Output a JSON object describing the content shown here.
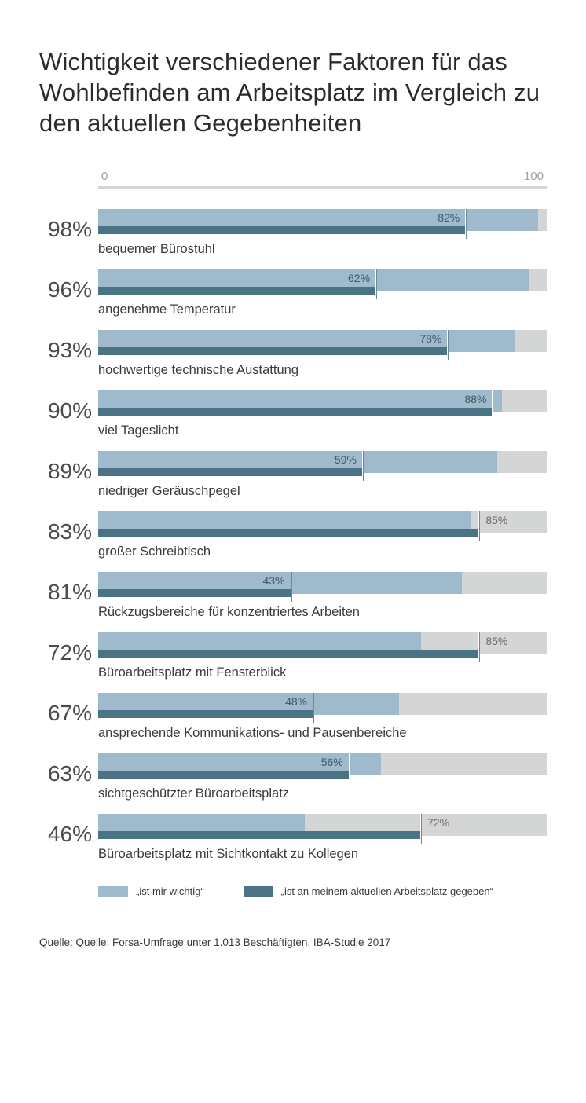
{
  "title": "Wichtigkeit verschiedener Faktoren für das Wohlbefinden am Arbeitsplatz im Vergleich zu den aktuellen Gegebenheiten",
  "axis": {
    "min_label": "0",
    "max_label": "100",
    "max": 100
  },
  "colors": {
    "track": "#d4d6d6",
    "importance": "#9ebacc",
    "actual": "#4a7485",
    "text": "#3a3a3a",
    "inner_label": "#3c5a68"
  },
  "legend": {
    "importance": "„ist mir wichtig“",
    "actual": "„ist an meinem aktuellen Arbeitsplatz gegeben“"
  },
  "source": "Quelle: Quelle: Forsa-Umfrage unter 1.013 Beschäftigten, IBA-Studie 2017",
  "rows": [
    {
      "label": "bequemer Bürostuhl",
      "importance": 98,
      "actual": 82,
      "inner": "82%"
    },
    {
      "label": "angenehme Temperatur",
      "importance": 96,
      "actual": 62,
      "inner": "62%"
    },
    {
      "label": "hochwertige technische Austattung",
      "importance": 93,
      "actual": 78,
      "inner": "78%"
    },
    {
      "label": "viel Tageslicht",
      "importance": 90,
      "actual": 88,
      "inner": "88%"
    },
    {
      "label": "niedriger Geräuschpegel",
      "importance": 89,
      "actual": 59,
      "inner": "59%"
    },
    {
      "label": "großer Schreibtisch",
      "importance": 83,
      "actual": 85,
      "inner": "85%"
    },
    {
      "label": "Rückzugsbereiche für konzentriertes Arbeiten",
      "importance": 81,
      "actual": 43,
      "inner": "43%"
    },
    {
      "label": "Büroarbeitsplatz mit Fensterblick",
      "importance": 72,
      "actual": 85,
      "inner": "85%"
    },
    {
      "label": "ansprechende Kommunikations- und Pausenbereiche",
      "importance": 67,
      "actual": 48,
      "inner": "48%"
    },
    {
      "label": "sichtgeschützter Büroarbeitsplatz",
      "importance": 63,
      "actual": 56,
      "inner": "56%"
    },
    {
      "label": "Büroarbeitsplatz mit Sichtkontakt zu Kollegen",
      "importance": 46,
      "actual": 72,
      "inner": "72%"
    }
  ]
}
